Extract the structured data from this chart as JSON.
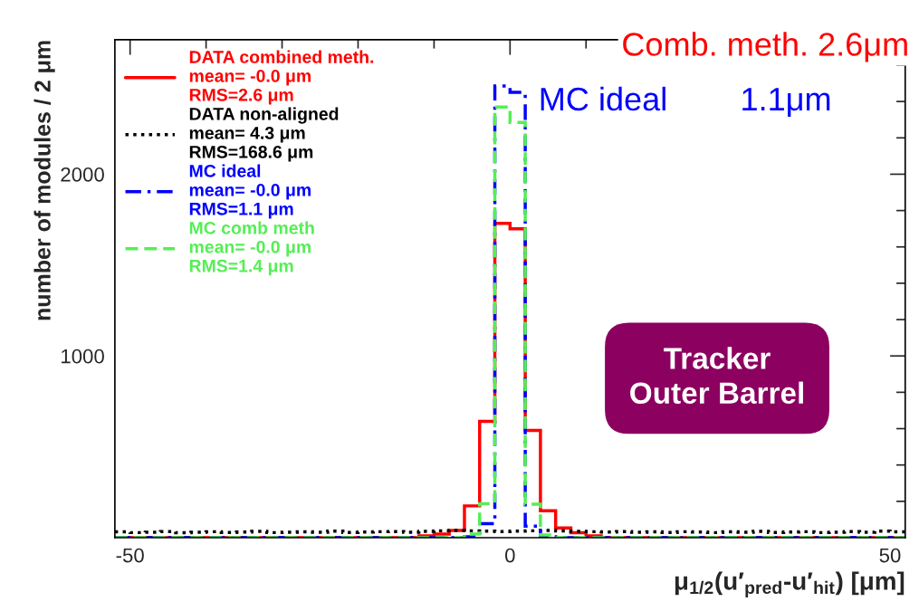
{
  "chart_data": {
    "type": "histogram",
    "xlabel": "μ$_{1/2}$(u′$_{pred}$-u′$_{hit}$) [μm]",
    "ylabel": "number of modules / 2 μm",
    "bins": [
      -52,
      -50,
      -48,
      -46,
      -44,
      -42,
      -40,
      -38,
      -36,
      -34,
      -32,
      -30,
      -28,
      -26,
      -24,
      -22,
      -20,
      -18,
      -16,
      -14,
      -12,
      -10,
      -8,
      -6,
      -4,
      -2,
      0,
      2,
      4,
      6,
      8,
      10,
      12,
      14,
      16,
      18,
      20,
      22,
      24,
      26,
      28,
      30,
      32,
      34,
      36,
      38,
      40,
      42,
      44,
      46,
      48,
      50,
      52
    ],
    "series": [
      {
        "name": "DATA combined meth.\nmean= -0.0 μm\nRMS=2.6 μm",
        "color": "#ff0000",
        "line_style": "solid",
        "values": [
          0,
          0,
          0,
          0,
          0,
          0,
          0,
          0,
          0,
          0,
          0,
          0,
          0,
          0,
          0,
          0,
          0,
          0,
          0,
          0,
          10,
          20,
          40,
          175,
          640,
          1730,
          1700,
          590,
          148,
          54,
          27,
          10,
          0,
          0,
          0,
          0,
          0,
          0,
          0,
          0,
          0,
          0,
          0,
          0,
          0,
          0,
          0,
          0,
          0,
          0,
          0,
          0
        ]
      },
      {
        "name": "DATA non-aligned\nmean= 4.3 μm\nRMS=168.6 μm",
        "color": "#000000",
        "line_style": "dotted",
        "values": [
          32,
          28,
          30,
          34,
          27,
          30,
          33,
          29,
          31,
          35,
          28,
          30,
          32,
          30,
          36,
          29,
          31,
          33,
          34,
          30,
          35,
          38,
          40,
          38,
          36,
          34,
          36,
          38,
          40,
          37,
          35,
          33,
          31,
          34,
          30,
          32,
          29,
          33,
          31,
          28,
          32,
          30,
          35,
          29,
          31,
          33,
          28,
          30,
          34,
          30,
          36,
          32
        ]
      },
      {
        "name": "MC ideal\nmean= -0.0 μm\nRMS=1.1 μm",
        "color": "#0000ff",
        "line_style": "dashdot",
        "values": [
          0,
          0,
          0,
          0,
          0,
          0,
          0,
          0,
          0,
          0,
          0,
          0,
          0,
          0,
          0,
          0,
          0,
          0,
          0,
          0,
          0,
          0,
          0,
          5,
          77,
          2485,
          2450,
          63,
          5,
          0,
          0,
          0,
          0,
          0,
          0,
          0,
          0,
          0,
          0,
          0,
          0,
          0,
          0,
          0,
          0,
          0,
          0,
          0,
          0,
          0,
          0,
          0
        ]
      },
      {
        "name": "MC comb meth\nmean= -0.0 μm\nRMS=1.4 μm",
        "color": "#55ee55",
        "line_style": "dashed",
        "values": [
          0,
          0,
          0,
          0,
          0,
          0,
          0,
          0,
          0,
          0,
          0,
          0,
          0,
          0,
          0,
          0,
          0,
          0,
          0,
          0,
          0,
          0,
          0,
          20,
          187,
          2370,
          2285,
          184,
          15,
          0,
          0,
          0,
          0,
          0,
          0,
          0,
          0,
          0,
          0,
          0,
          0,
          0,
          0,
          0,
          0,
          0,
          0,
          0,
          0,
          0,
          0,
          0
        ]
      }
    ],
    "xlim": [
      -52,
      52
    ],
    "xticks": [
      -50,
      {
        "value": -40,
        "label": null
      },
      {
        "value": -30,
        "label": null
      },
      {
        "value": -20,
        "label": null
      },
      {
        "value": -10,
        "label": null
      },
      0,
      {
        "value": 10,
        "label": null
      },
      {
        "value": 20,
        "label": null
      },
      {
        "value": 30,
        "label": null
      },
      {
        "value": 40,
        "label": null
      },
      50
    ],
    "ylim": [
      0,
      2740
    ],
    "yticks": [
      {
        "value": 200,
        "label": null
      },
      {
        "value": 400,
        "label": null
      },
      {
        "value": 600,
        "label": null
      },
      {
        "value": 800,
        "label": null
      },
      1000,
      {
        "value": 1200,
        "label": null
      },
      {
        "value": 1400,
        "label": null
      },
      {
        "value": 1600,
        "label": null
      },
      {
        "value": 1800,
        "label": null
      },
      2000,
      {
        "value": 2200,
        "label": null
      },
      {
        "value": 2400,
        "label": null
      },
      {
        "value": 2600,
        "label": null
      }
    ],
    "legend": "top left",
    "grid": false,
    "annotations": [
      "Comb. meth. 2.6μm",
      "MC ideal        1.1μm",
      "Tracker\nOuter Barrel"
    ]
  }
}
